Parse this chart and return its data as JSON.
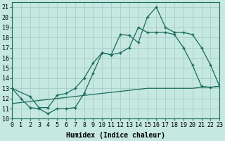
{
  "background_color": "#c5e8e0",
  "grid_color": "#a8ccc6",
  "line_color": "#1a6b5a",
  "xlim": [
    0,
    23
  ],
  "ylim": [
    10,
    21.5
  ],
  "xticks": [
    0,
    1,
    2,
    3,
    4,
    5,
    6,
    7,
    8,
    9,
    10,
    11,
    12,
    13,
    14,
    15,
    16,
    17,
    18,
    19,
    20,
    21,
    22,
    23
  ],
  "yticks": [
    10,
    11,
    12,
    13,
    14,
    15,
    16,
    17,
    18,
    19,
    20,
    21
  ],
  "xlabel": "Humidex (Indice chaleur)",
  "font_size_label": 7,
  "font_size_tick": 6,
  "marker_size": 2,
  "line_width": 0.9,
  "curve1_x": [
    0,
    1,
    2,
    3,
    4,
    5,
    6,
    7,
    8,
    9,
    10,
    11,
    12,
    13,
    14,
    15,
    16,
    17,
    18,
    19,
    20,
    21,
    22,
    23
  ],
  "curve1_y": [
    13.0,
    12.0,
    11.1,
    11.0,
    10.5,
    11.0,
    11.0,
    11.1,
    12.5,
    14.5,
    16.5,
    16.3,
    18.3,
    18.2,
    17.5,
    20.0,
    21.0,
    19.0,
    18.5,
    18.5,
    18.3,
    17.0,
    15.3,
    13.2
  ],
  "curve2_x": [
    0,
    2,
    3,
    4,
    5,
    6,
    7,
    8,
    9,
    10,
    11,
    12,
    13,
    14,
    15,
    16,
    17,
    18,
    19,
    20,
    21,
    22,
    23
  ],
  "curve2_y": [
    13.0,
    12.2,
    11.1,
    11.1,
    12.3,
    12.5,
    13.0,
    14.0,
    15.5,
    16.5,
    16.3,
    16.5,
    17.0,
    19.0,
    18.5,
    18.5,
    18.5,
    18.3,
    17.0,
    15.3,
    13.2,
    13.1,
    13.2
  ],
  "curve3_x": [
    0,
    1,
    2,
    3,
    4,
    5,
    6,
    7,
    8,
    9,
    10,
    11,
    12,
    13,
    14,
    15,
    16,
    17,
    18,
    19,
    20,
    21,
    22,
    23
  ],
  "curve3_y": [
    11.5,
    11.6,
    11.7,
    11.8,
    11.9,
    12.0,
    12.1,
    12.2,
    12.3,
    12.4,
    12.5,
    12.6,
    12.7,
    12.8,
    12.9,
    13.0,
    13.0,
    13.0,
    13.0,
    13.0,
    13.0,
    13.1,
    13.1,
    13.2
  ]
}
